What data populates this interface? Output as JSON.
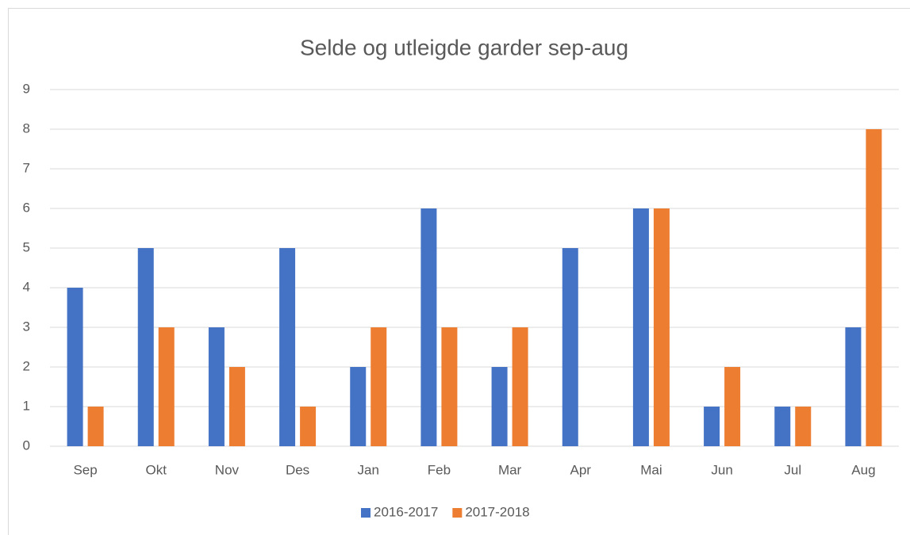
{
  "chart_data": {
    "type": "bar",
    "title": "Selde og utleigde garder sep-aug",
    "categories": [
      "Sep",
      "Okt",
      "Nov",
      "Des",
      "Jan",
      "Feb",
      "Mar",
      "Apr",
      "Mai",
      "Jun",
      "Jul",
      "Aug"
    ],
    "series": [
      {
        "name": "2016-2017",
        "color": "#4472c4",
        "values": [
          4,
          5,
          3,
          5,
          2,
          6,
          2,
          5,
          6,
          1,
          1,
          3
        ]
      },
      {
        "name": "2017-2018",
        "color": "#ed7d31",
        "values": [
          1,
          3,
          2,
          1,
          3,
          3,
          3,
          0,
          6,
          2,
          1,
          8
        ]
      }
    ],
    "ylim": [
      0,
      9
    ],
    "yticks": [
      0,
      1,
      2,
      3,
      4,
      5,
      6,
      7,
      8,
      9
    ],
    "grid": true,
    "legend": "bottom"
  }
}
